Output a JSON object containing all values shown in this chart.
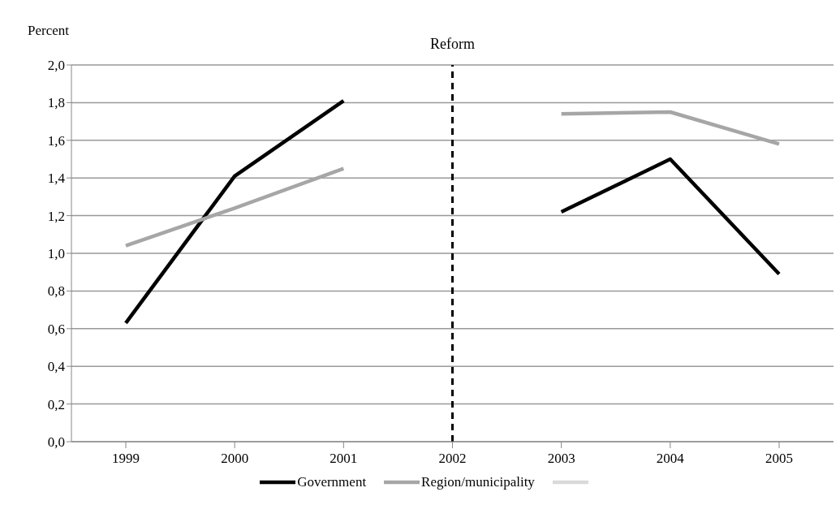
{
  "chart_data": {
    "type": "line",
    "ylabel": "Percent",
    "categories": [
      "1999",
      "2000",
      "2001",
      "2002",
      "2003",
      "2004",
      "2005"
    ],
    "series": [
      {
        "name": "Government",
        "color": "#000000",
        "values": [
          0.63,
          1.41,
          1.81,
          null,
          1.22,
          1.5,
          0.89
        ]
      },
      {
        "name": "Region/municipality",
        "color": "#a6a6a6",
        "values": [
          1.04,
          1.24,
          1.45,
          null,
          1.74,
          1.75,
          1.58
        ]
      },
      {
        "color": "#d9d9d9",
        "values": [
          null,
          null,
          null,
          null,
          null,
          null,
          null
        ]
      }
    ],
    "ylim": [
      0,
      2
    ],
    "yticks": [
      {
        "value": 0,
        "label": "0,0"
      },
      {
        "value": 0.2,
        "label": "0,2"
      },
      {
        "value": 0.4,
        "label": "0,4"
      },
      {
        "value": 0.6,
        "label": "0,6"
      },
      {
        "value": 0.8,
        "label": "0,8"
      },
      {
        "value": 1,
        "label": "1,0"
      },
      {
        "value": 1.2,
        "label": "1,2"
      },
      {
        "value": 1.4,
        "label": "1,4"
      },
      {
        "value": 1.6,
        "label": "1,6"
      },
      {
        "value": 1.8,
        "label": "1,8"
      },
      {
        "value": 2,
        "label": "2,0"
      }
    ],
    "ref_lines": [
      {
        "axis": "x",
        "value": "2002",
        "label": "Reform",
        "color": "#000000",
        "line_style": "dashed"
      }
    ],
    "grid": "y",
    "legend": "bottom",
    "marker": "none",
    "line_style": "solid"
  }
}
